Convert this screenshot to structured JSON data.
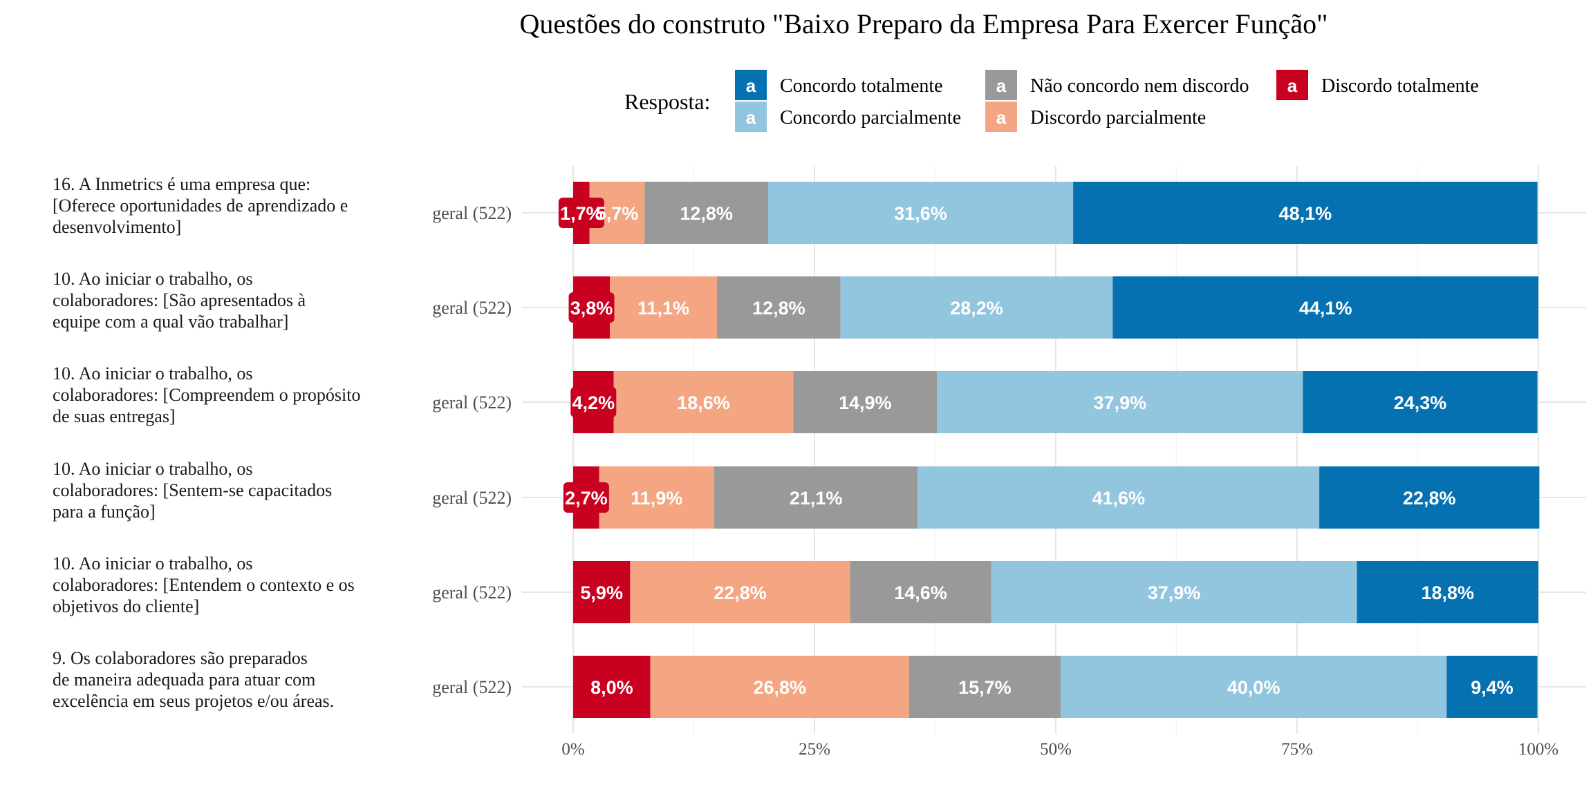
{
  "chart_data": {
    "type": "bar",
    "orientation": "horizontal",
    "stacked": "percent",
    "title": "Questões do construto \"Baixo Preparo da Empresa Para Exercer Função\"",
    "legend": {
      "title": "Resposta:",
      "placement": "top",
      "key_glyph": "a",
      "entries": [
        {
          "name": "Concordo totalmente",
          "color": "#0571b0"
        },
        {
          "name": "Concordo parcialmente",
          "color": "#92c5de"
        },
        {
          "name": "Não concordo nem discordo",
          "color": "#999999"
        },
        {
          "name": "Discordo parcialmente",
          "color": "#f4a582"
        },
        {
          "name": "Discordo totalmente",
          "color": "#ca0020"
        }
      ]
    },
    "stack_order": [
      "Discordo totalmente",
      "Discordo parcialmente",
      "Não concordo nem discordo",
      "Concordo parcialmente",
      "Concordo totalmente"
    ],
    "x_ticks": [
      "0%",
      "25%",
      "50%",
      "75%",
      "100%"
    ],
    "xlim": [
      0,
      100
    ],
    "grid": true,
    "rows": [
      {
        "question": [
          "16. A Inmetrics é uma empresa que:",
          "[Oferece oportunidades de aprendizado e",
          "desenvolvimento]"
        ],
        "group": "geral (522)",
        "values": [
          1.7,
          5.7,
          12.8,
          31.6,
          48.1
        ],
        "labels": [
          "1,7%",
          "5,7%",
          "12,8%",
          "31,6%",
          "48,1%"
        ]
      },
      {
        "question": [
          "10. Ao iniciar o trabalho, os",
          "colaboradores: [São apresentados à",
          "equipe com a qual vão trabalhar]"
        ],
        "group": "geral (522)",
        "values": [
          3.8,
          11.1,
          12.8,
          28.2,
          44.1
        ],
        "labels": [
          "3,8%",
          "11,1%",
          "12,8%",
          "28,2%",
          "44,1%"
        ]
      },
      {
        "question": [
          "10. Ao iniciar o trabalho, os",
          "colaboradores: [Compreendem o propósito",
          "de suas entregas]"
        ],
        "group": "geral (522)",
        "values": [
          4.2,
          18.6,
          14.9,
          37.9,
          24.3
        ],
        "labels": [
          "4,2%",
          "18,6%",
          "14,9%",
          "37,9%",
          "24,3%"
        ]
      },
      {
        "question": [
          "10. Ao iniciar o trabalho, os",
          "colaboradores: [Sentem-se capacitados",
          "para a função]"
        ],
        "group": "geral (522)",
        "values": [
          2.7,
          11.9,
          21.1,
          41.6,
          22.8
        ],
        "labels": [
          "2,7%",
          "11,9%",
          "21,1%",
          "41,6%",
          "22,8%"
        ]
      },
      {
        "question": [
          "10. Ao iniciar o trabalho, os",
          "colaboradores: [Entendem o contexto e os",
          "objetivos do cliente]"
        ],
        "group": "geral (522)",
        "values": [
          5.9,
          22.8,
          14.6,
          37.9,
          18.8
        ],
        "labels": [
          "5,9%",
          "22,8%",
          "14,6%",
          "37,9%",
          "18,8%"
        ]
      },
      {
        "question": [
          "9. Os colaboradores são preparados",
          "de maneira adequada para atuar com",
          "excelência em seus projetos e/ou áreas."
        ],
        "group": "geral (522)",
        "values": [
          8.0,
          26.8,
          15.7,
          40.0,
          9.4
        ],
        "labels": [
          "8,0%",
          "26,8%",
          "15,7%",
          "40,0%",
          "9,4%"
        ]
      }
    ]
  }
}
